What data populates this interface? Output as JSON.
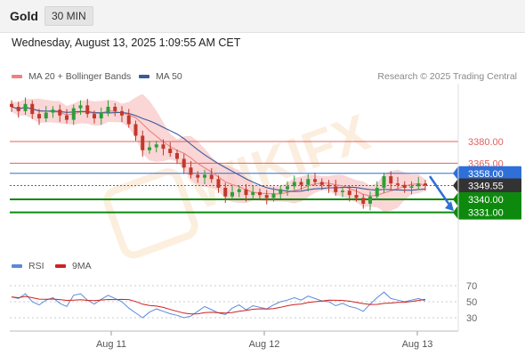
{
  "header": {
    "instrument": "Gold",
    "timeframe": "30 MIN"
  },
  "datetime": "Wednesday, August 13, 2025 1:09:55 AM CET",
  "legend": {
    "bollinger": "MA 20 + Bollinger Bands",
    "ma50": "MA 50",
    "credit": "Research © 2025 Trading Central",
    "rsi": "RSI",
    "rsi_ma": "9MA"
  },
  "watermark": {
    "text": "WIKIFX"
  },
  "colors": {
    "bollinger": "#f08080",
    "band_fill": "#f8c8c8",
    "ma50": "#3a5a9b",
    "up": "#2e9e3a",
    "down": "#c0392b",
    "resistance": "#e06060",
    "pivot_blue": "#2f6fd8",
    "support": "#0d8a0d",
    "current": "#333333",
    "rsi": "#5a8ad8",
    "rsi_ma": "#d02020"
  },
  "chart_data": [
    {
      "type": "candlestick",
      "name": "price",
      "y_range": [
        3308,
        3420
      ],
      "levels": [
        {
          "label": "3380.00",
          "value": 3380.0,
          "kind": "resistance"
        },
        {
          "label": "3365.00",
          "value": 3365.0,
          "kind": "resistance"
        },
        {
          "label": "3358.00",
          "value": 3358.0,
          "kind": "pivot"
        },
        {
          "label": "3349.55",
          "value": 3349.55,
          "kind": "current"
        },
        {
          "label": "3340.00",
          "value": 3340.0,
          "kind": "support"
        },
        {
          "label": "3331.00",
          "value": 3331.0,
          "kind": "support"
        }
      ],
      "x_labels": [
        "Aug 11",
        "Aug 12",
        "Aug 13"
      ],
      "series": [
        {
          "name": "MA 20 + Bollinger Bands"
        },
        {
          "name": "MA 50"
        }
      ],
      "projection": {
        "from": 3356,
        "to": 3332,
        "direction": "down"
      },
      "close_path": [
        3404,
        3401,
        3406,
        3399,
        3396,
        3400,
        3402,
        3398,
        3395,
        3403,
        3405,
        3399,
        3396,
        3400,
        3404,
        3401,
        3398,
        3392,
        3384,
        3374,
        3376,
        3378,
        3375,
        3372,
        3368,
        3362,
        3357,
        3355,
        3357,
        3354,
        3348,
        3342,
        3345,
        3347,
        3343,
        3345,
        3343,
        3341,
        3344,
        3347,
        3349,
        3352,
        3350,
        3354,
        3352,
        3350,
        3349,
        3345,
        3346,
        3343,
        3341,
        3337,
        3342,
        3348,
        3356,
        3351,
        3350,
        3348,
        3349,
        3351,
        3349.55
      ]
    },
    {
      "type": "line",
      "name": "RSI",
      "y_ticks": [
        70,
        50,
        30
      ],
      "series": [
        {
          "name": "RSI"
        },
        {
          "name": "9MA"
        }
      ],
      "rsi_path": [
        56,
        54,
        60,
        50,
        46,
        52,
        55,
        48,
        44,
        58,
        60,
        52,
        47,
        53,
        58,
        54,
        50,
        42,
        36,
        30,
        37,
        41,
        38,
        35,
        33,
        30,
        32,
        38,
        44,
        40,
        36,
        34,
        42,
        46,
        40,
        45,
        43,
        41,
        46,
        50,
        52,
        55,
        52,
        57,
        54,
        51,
        50,
        45,
        48,
        44,
        42,
        38,
        47,
        55,
        62,
        54,
        52,
        50,
        52,
        54,
        51
      ]
    }
  ]
}
